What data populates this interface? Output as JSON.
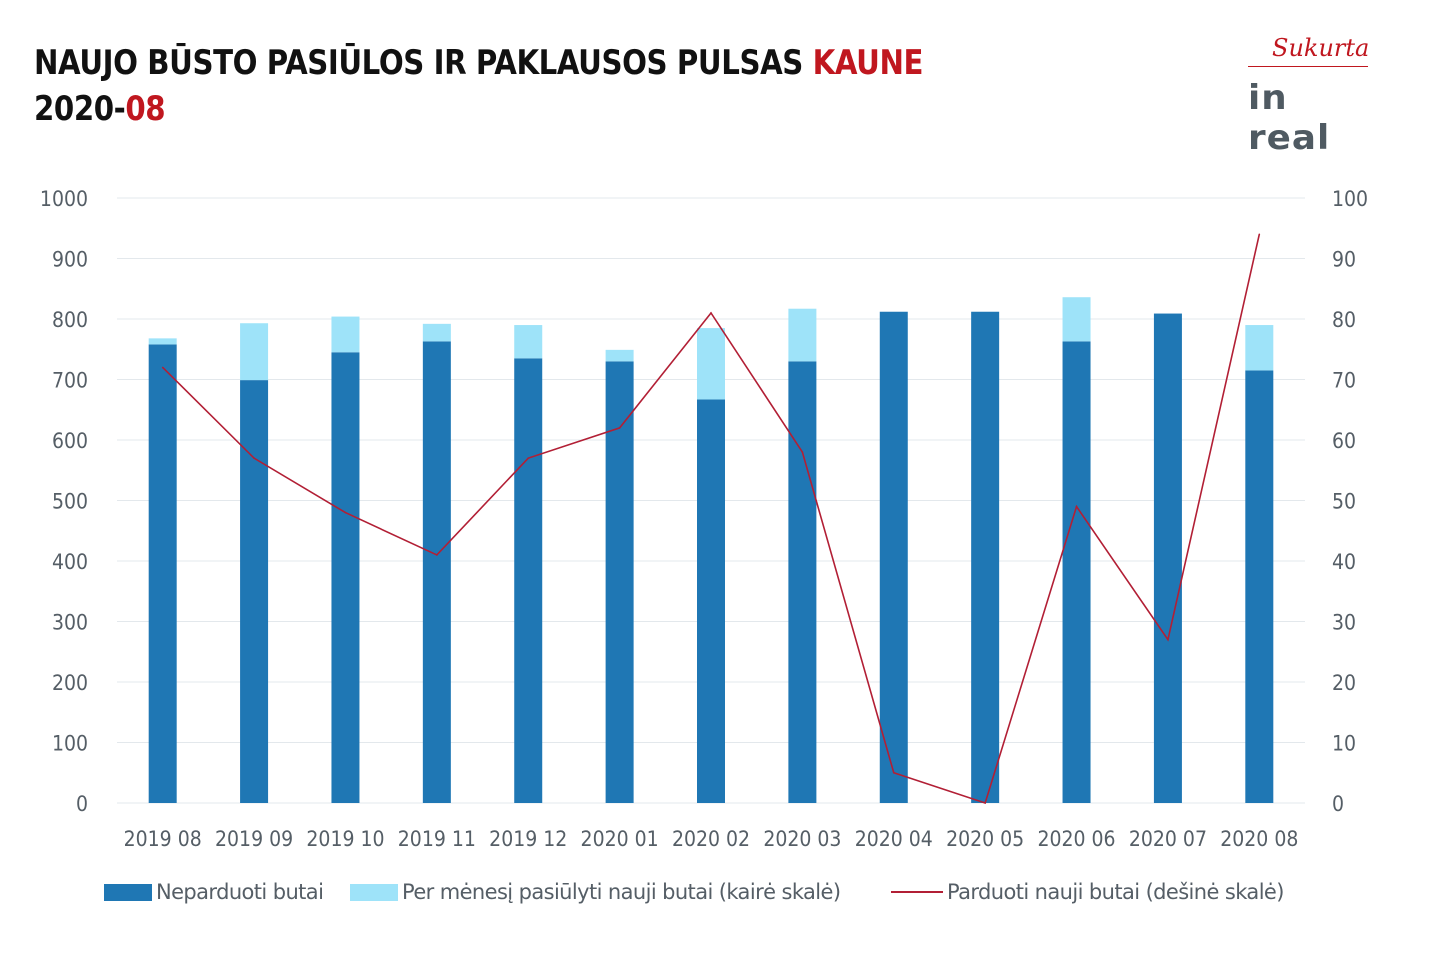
{
  "title": {
    "line1_main": "NAUJO BŪSTO PASIŪLOS IR PAKLAUSOS PULSAS ",
    "line1_accent": "KAUNE",
    "line2_main": "2020-",
    "line2_accent": "08"
  },
  "logo": {
    "script": "Sukurta",
    "word": "in real"
  },
  "colors": {
    "accent": "#c0171f",
    "unsold": "#1f77b4",
    "new_offered": "#9ee3f9",
    "sold_line": "#b21f35",
    "axis_text": "#555e66",
    "grid": "#e3e8ec"
  },
  "chart_data": {
    "type": "bar",
    "stacked": true,
    "categories": [
      "2019 08",
      "2019 09",
      "2019 10",
      "2019 11",
      "2019 12",
      "2020 01",
      "2020 02",
      "2020 03",
      "2020 04",
      "2020 05",
      "2020 06",
      "2020 07",
      "2020 08"
    ],
    "series": [
      {
        "name": "Neparduoti butai",
        "axis": "left",
        "kind": "bar",
        "values": [
          758,
          699,
          745,
          763,
          735,
          730,
          667,
          730,
          812,
          812,
          763,
          809,
          715
        ]
      },
      {
        "name": "Per mėnesį pasiūlyti nauji butai (kairė skalė)",
        "axis": "left",
        "kind": "bar-stacked",
        "values": [
          10,
          94,
          59,
          29,
          55,
          19,
          118,
          87,
          0,
          0,
          73,
          0,
          75
        ]
      },
      {
        "name": "Parduoti nauji butai (dešinė skalė)",
        "axis": "right",
        "kind": "line",
        "values": [
          72,
          57,
          48,
          41,
          57,
          62,
          81,
          58,
          5,
          0,
          49,
          27,
          94
        ]
      }
    ],
    "y_left": {
      "min": 0,
      "max": 1000,
      "ticks": [
        0,
        100,
        200,
        300,
        400,
        500,
        600,
        700,
        800,
        900,
        1000
      ]
    },
    "y_right": {
      "min": 0,
      "max": 100,
      "ticks": [
        0,
        10,
        20,
        30,
        40,
        50,
        60,
        70,
        80,
        90,
        100
      ]
    },
    "grid": true,
    "legend_position": "bottom"
  }
}
